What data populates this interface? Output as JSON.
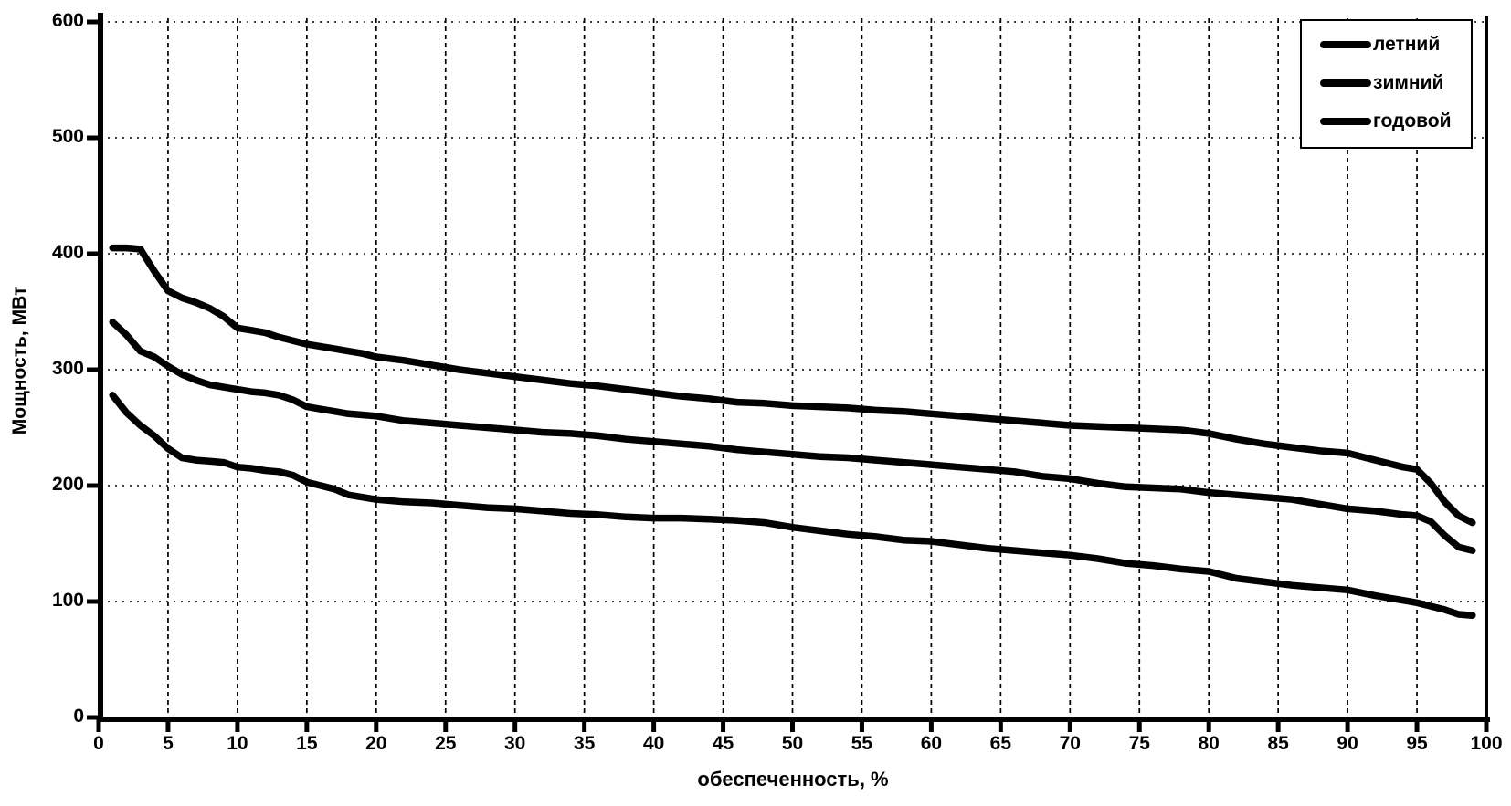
{
  "chart_data": {
    "type": "line",
    "title": "",
    "xlabel": "обеспеченность, %",
    "ylabel": "Мощность, МВт",
    "xlim": [
      0,
      100
    ],
    "ylim": [
      0,
      600
    ],
    "x_ticks": [
      0,
      5,
      10,
      15,
      20,
      25,
      30,
      35,
      40,
      45,
      50,
      55,
      60,
      65,
      70,
      75,
      80,
      85,
      90,
      95,
      100
    ],
    "y_ticks": [
      0,
      100,
      200,
      300,
      400,
      500,
      600
    ],
    "grid": "dotted-both-axes",
    "legend_position": "top-right",
    "line_color": "#000000",
    "background_color": "#ffffff",
    "x": [
      1,
      2,
      3,
      4,
      5,
      6,
      7,
      8,
      9,
      10,
      11,
      12,
      13,
      14,
      15,
      16,
      17,
      18,
      19,
      20,
      22,
      24,
      26,
      28,
      30,
      32,
      34,
      36,
      38,
      40,
      42,
      44,
      46,
      48,
      50,
      52,
      54,
      56,
      58,
      60,
      62,
      64,
      66,
      68,
      70,
      72,
      74,
      76,
      78,
      80,
      82,
      84,
      86,
      88,
      90,
      92,
      94,
      95,
      96,
      97,
      98,
      99
    ],
    "series": [
      {
        "name": "летний",
        "values": [
          278,
          263,
          252,
          243,
          232,
          224,
          222,
          221,
          220,
          216,
          215,
          213,
          212,
          209,
          203,
          200,
          197,
          192,
          190,
          188,
          186,
          185,
          183,
          181,
          180,
          178,
          176,
          175,
          173,
          172,
          172,
          171,
          170,
          168,
          164,
          161,
          158,
          156,
          153,
          152,
          149,
          146,
          144,
          142,
          140,
          137,
          133,
          131,
          128,
          126,
          120,
          117,
          114,
          112,
          110,
          105,
          101,
          99,
          96,
          93,
          89,
          88
        ]
      },
      {
        "name": "зимний",
        "values": [
          405,
          405,
          404,
          385,
          368,
          362,
          358,
          353,
          346,
          336,
          334,
          332,
          328,
          325,
          322,
          320,
          318,
          316,
          314,
          311,
          308,
          304,
          300,
          297,
          294,
          291,
          288,
          286,
          283,
          280,
          277,
          275,
          272,
          271,
          269,
          268,
          267,
          265,
          264,
          262,
          260,
          258,
          256,
          254,
          252,
          251,
          250,
          249,
          248,
          245,
          240,
          236,
          233,
          230,
          228,
          222,
          216,
          214,
          202,
          186,
          174,
          168
        ]
      },
      {
        "name": "годовой",
        "values": [
          341,
          330,
          316,
          311,
          303,
          296,
          291,
          287,
          285,
          283,
          281,
          280,
          278,
          274,
          268,
          266,
          264,
          262,
          261,
          260,
          256,
          254,
          252,
          250,
          248,
          246,
          245,
          243,
          240,
          238,
          236,
          234,
          231,
          229,
          227,
          225,
          224,
          222,
          220,
          218,
          216,
          214,
          212,
          208,
          206,
          202,
          199,
          198,
          197,
          194,
          192,
          190,
          188,
          184,
          180,
          178,
          175,
          174,
          169,
          157,
          147,
          144
        ]
      }
    ]
  }
}
